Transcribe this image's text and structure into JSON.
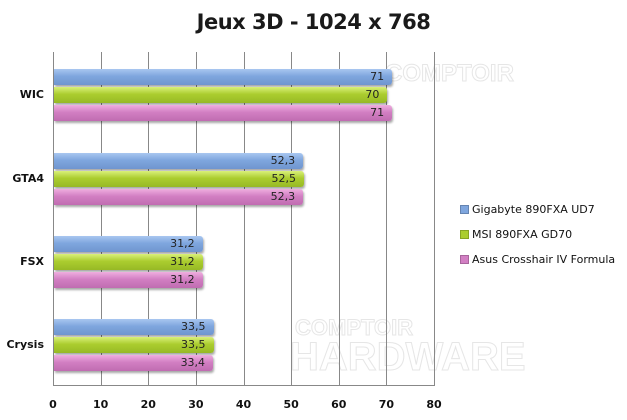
{
  "chart_data": {
    "type": "bar",
    "orientation": "horizontal",
    "title": "Jeux 3D - 1024 x 768",
    "xlabel": "",
    "ylabel": "",
    "categories": [
      "WIC",
      "GTA4",
      "FSX",
      "Crysis"
    ],
    "series": [
      {
        "name": "Gigabyte 890FXA UD7",
        "color": "#7fa6de",
        "values": [
          71,
          52.3,
          31.2,
          33.5
        ],
        "labels": [
          "71",
          "52,3",
          "31,2",
          "33,5"
        ]
      },
      {
        "name": "MSI 890FXA GD70",
        "color": "#abcd2f",
        "values": [
          70,
          52.5,
          31.2,
          33.5
        ],
        "labels": [
          "70",
          "52,5",
          "31,2",
          "33,5"
        ]
      },
      {
        "name": "Asus Crosshair IV Formula",
        "color": "#d27fc3",
        "values": [
          71,
          52.3,
          31.2,
          33.4
        ],
        "labels": [
          "71",
          "52,3",
          "31,2",
          "33,4"
        ]
      }
    ],
    "xlim": [
      0,
      80
    ],
    "xticks": [
      "0",
      "10",
      "20",
      "30",
      "40",
      "50",
      "60",
      "70",
      "80"
    ],
    "grid": true,
    "legend_position": "right"
  },
  "watermark": {
    "line1": "Le COMPTOIR",
    "line2": "du HARDWARE"
  }
}
